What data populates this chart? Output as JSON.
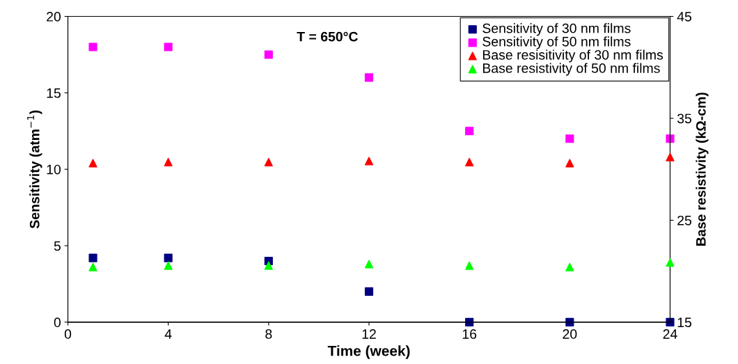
{
  "chart_data": {
    "type": "scatter",
    "xlabel": "Time (week)",
    "ylabel": "Sensitivity (atm$^{−1}$)",
    "y2label": "Base resistivity (kΩ-cm)",
    "annotations": [
      "T = 650°C"
    ],
    "x": [
      1,
      4,
      8,
      12,
      16,
      20,
      24
    ],
    "series": [
      {
        "name": "Sensitivity of 30 nm films",
        "color": "#000080",
        "marker": "square",
        "values": [
          4.2,
          4.2,
          4.0,
          2.0,
          0,
          0,
          0
        ]
      },
      {
        "name": "Sensitivity of 50 nm films",
        "color": "#ff00ff",
        "marker": "square",
        "values": [
          18,
          18,
          17.5,
          16,
          12.5,
          12,
          12
        ]
      },
      {
        "name": "Base resisitivity of 30 nm films",
        "color": "#ff0000",
        "marker": "triangle",
        "axis": "y2",
        "values": [
          30.6,
          30.7,
          30.7,
          30.8,
          30.7,
          30.6,
          31.2
        ]
      },
      {
        "name": "Base resistivity of 50 nm films",
        "color": "#00ff00",
        "marker": "triangle",
        "axis": "y2",
        "values": [
          20.4,
          20.55,
          20.55,
          20.7,
          20.55,
          20.4,
          20.85
        ]
      }
    ],
    "xlim": [
      0,
      24
    ],
    "xticks": [
      0,
      4,
      8,
      12,
      16,
      20,
      24
    ],
    "ylim": [
      0,
      20
    ],
    "yticks": [
      0,
      5,
      10,
      15,
      20
    ],
    "y2lim": [
      15,
      45
    ],
    "y2ticks": [
      15,
      25,
      35,
      45
    ],
    "grid": false,
    "legend": "top right"
  }
}
